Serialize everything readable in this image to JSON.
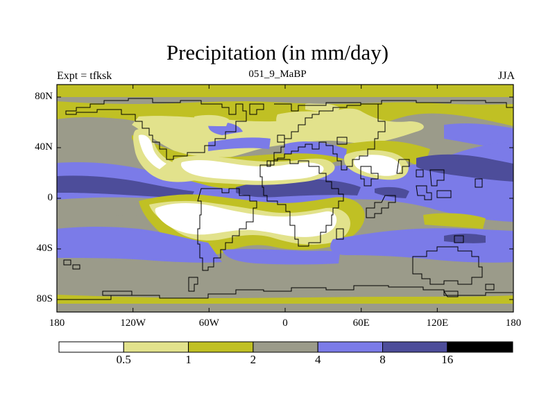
{
  "title": "Precipitation (in mm/day)",
  "subtitle_left": "Expt = tfksk",
  "subtitle_center": "051_9_MaBP",
  "subtitle_right": "JJA",
  "lat_labels": [
    "80N",
    "40N",
    "0",
    "40S",
    "80S"
  ],
  "lon_labels": [
    "180",
    "120W",
    "60W",
    "0",
    "60E",
    "120E",
    "180"
  ],
  "colorbar": {
    "bins": [
      "#ffffff",
      "#e2e28c",
      "#c0c024",
      "#9b9b8a",
      "#7b7be8",
      "#4d4d9a",
      "#000000"
    ],
    "labels": [
      "0.5",
      "1",
      "2",
      "4",
      "8",
      "16"
    ]
  },
  "colors": {
    "land_outline": "#000000"
  }
}
